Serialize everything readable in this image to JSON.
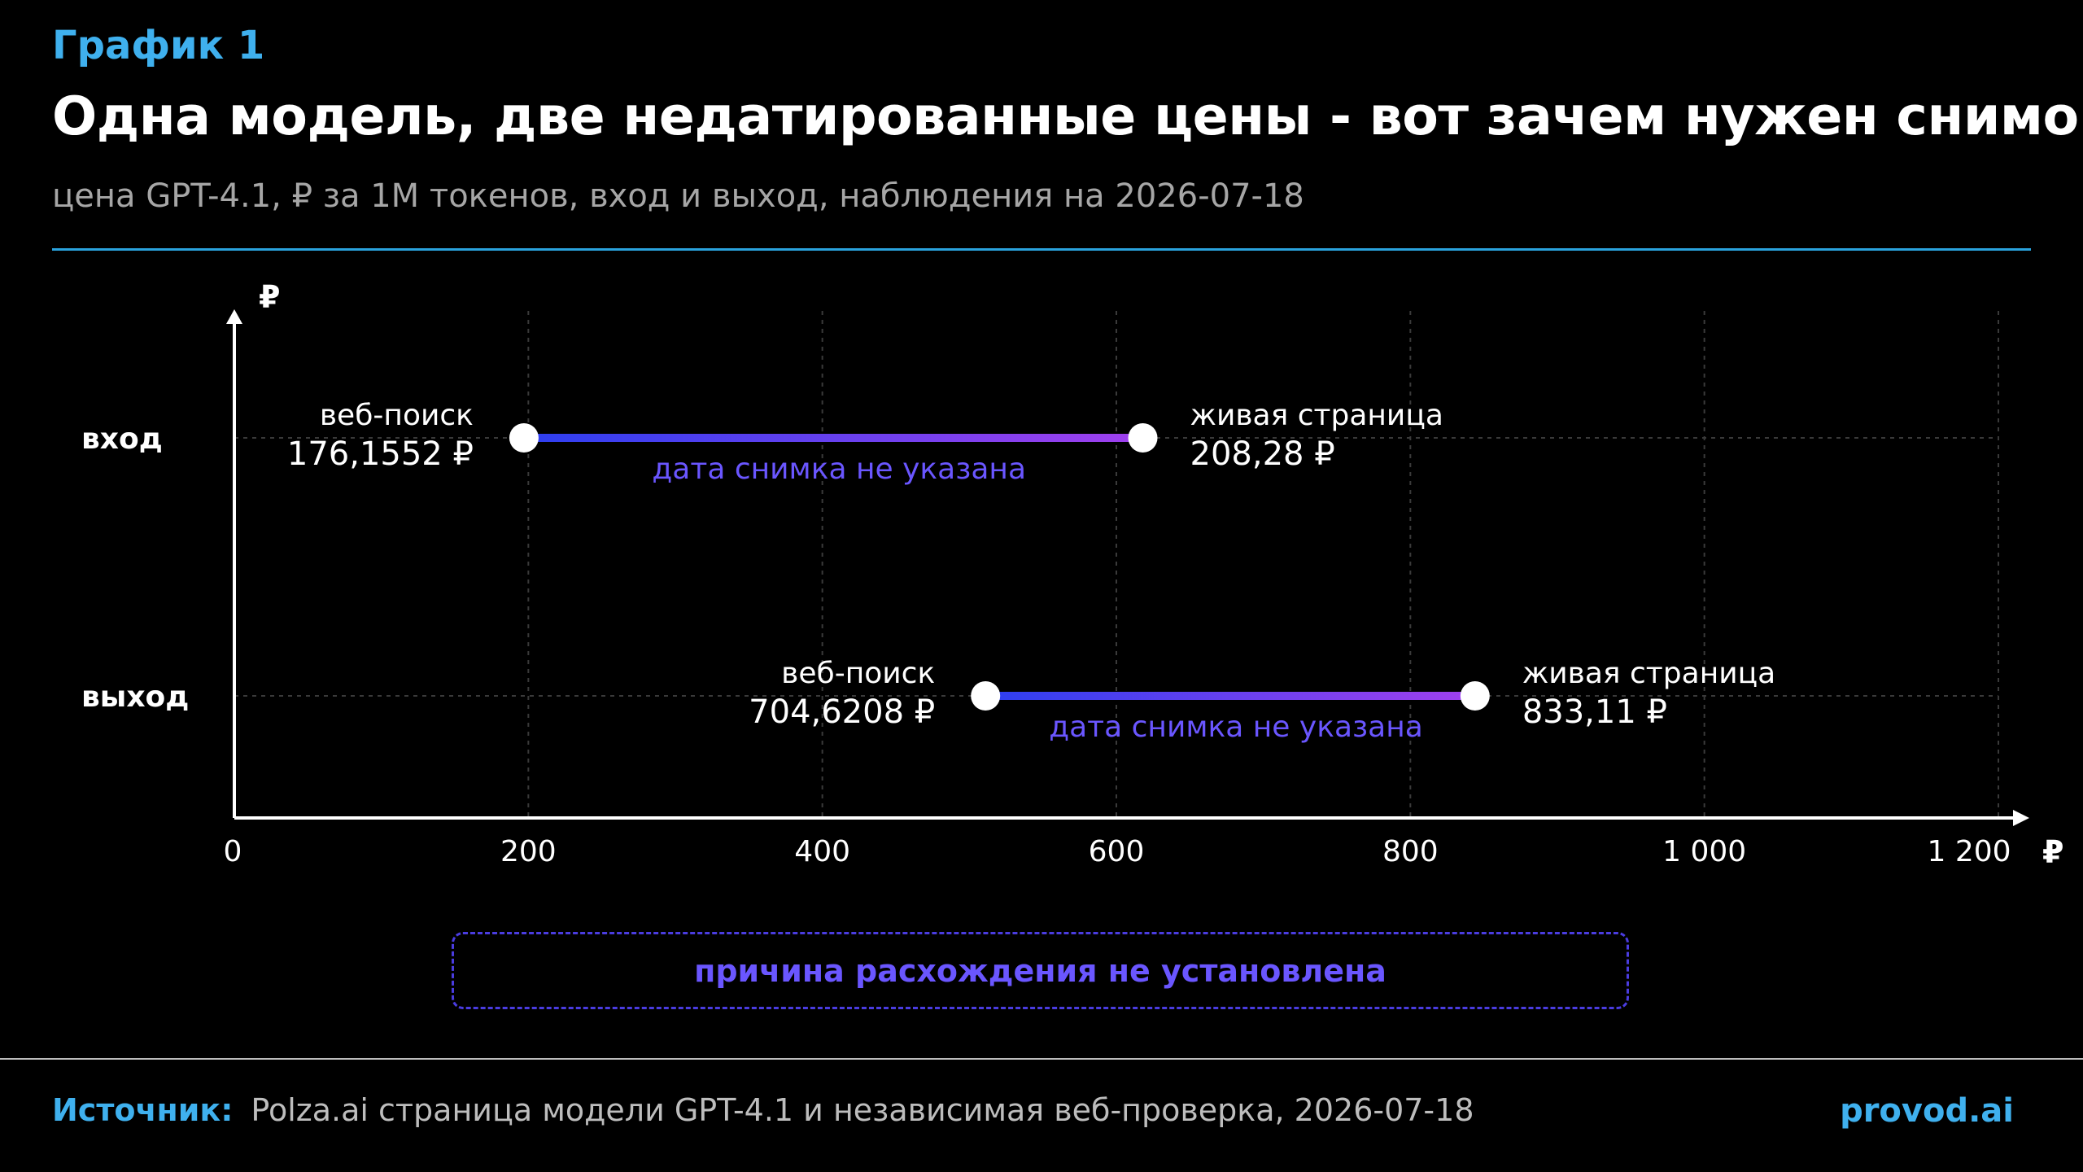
{
  "header": {
    "kicker": "График 1",
    "title": "Одна модель, две недатированные цены - вот зачем нужен снимок",
    "subtitle": "цена GPT-4.1, ₽ за 1M токенов, вход и выход, наблюдения на 2026-07-18"
  },
  "chart_data": {
    "type": "dumbbell",
    "x_unit": "₽",
    "y_unit": "₽",
    "xlim": [
      0,
      1200
    ],
    "x_ticks": [
      0,
      200,
      400,
      600,
      800,
      1000,
      1200
    ],
    "x_tick_labels": [
      "0",
      "200",
      "400",
      "600",
      "800",
      "1 000",
      "1 200"
    ],
    "grid": true,
    "rows": [
      {
        "label": "вход",
        "start": {
          "name": "веб-поиск",
          "value": 176.1552,
          "value_label": "176,1552 ₽",
          "x": 197
        },
        "end": {
          "name": "живая страница",
          "value": 208.28,
          "value_label": "208,28 ₽",
          "x": 618
        },
        "gap_note": "дата снимка не указана"
      },
      {
        "label": "выход",
        "start": {
          "name": "веб-поиск",
          "value": 704.6208,
          "value_label": "704,6208 ₽",
          "x": 511
        },
        "end": {
          "name": "живая страница",
          "value": 833.11,
          "value_label": "833,11 ₽",
          "x": 844
        },
        "gap_note": "дата снимка не указана"
      }
    ],
    "colors": {
      "bar_start": "#2d3ff0",
      "bar_end": "#a040ee",
      "dot": "#ffffff",
      "gap_note": "#6a56ff",
      "axis": "#ffffff",
      "grid": "#3a3a3a"
    }
  },
  "note": "причина расхождения не установлена",
  "footer": {
    "source_label": "Источник:",
    "source_text": "Polza.ai страница модели GPT-4.1 и независимая веб-проверка, 2026-07-18",
    "brand": "provod.ai"
  }
}
